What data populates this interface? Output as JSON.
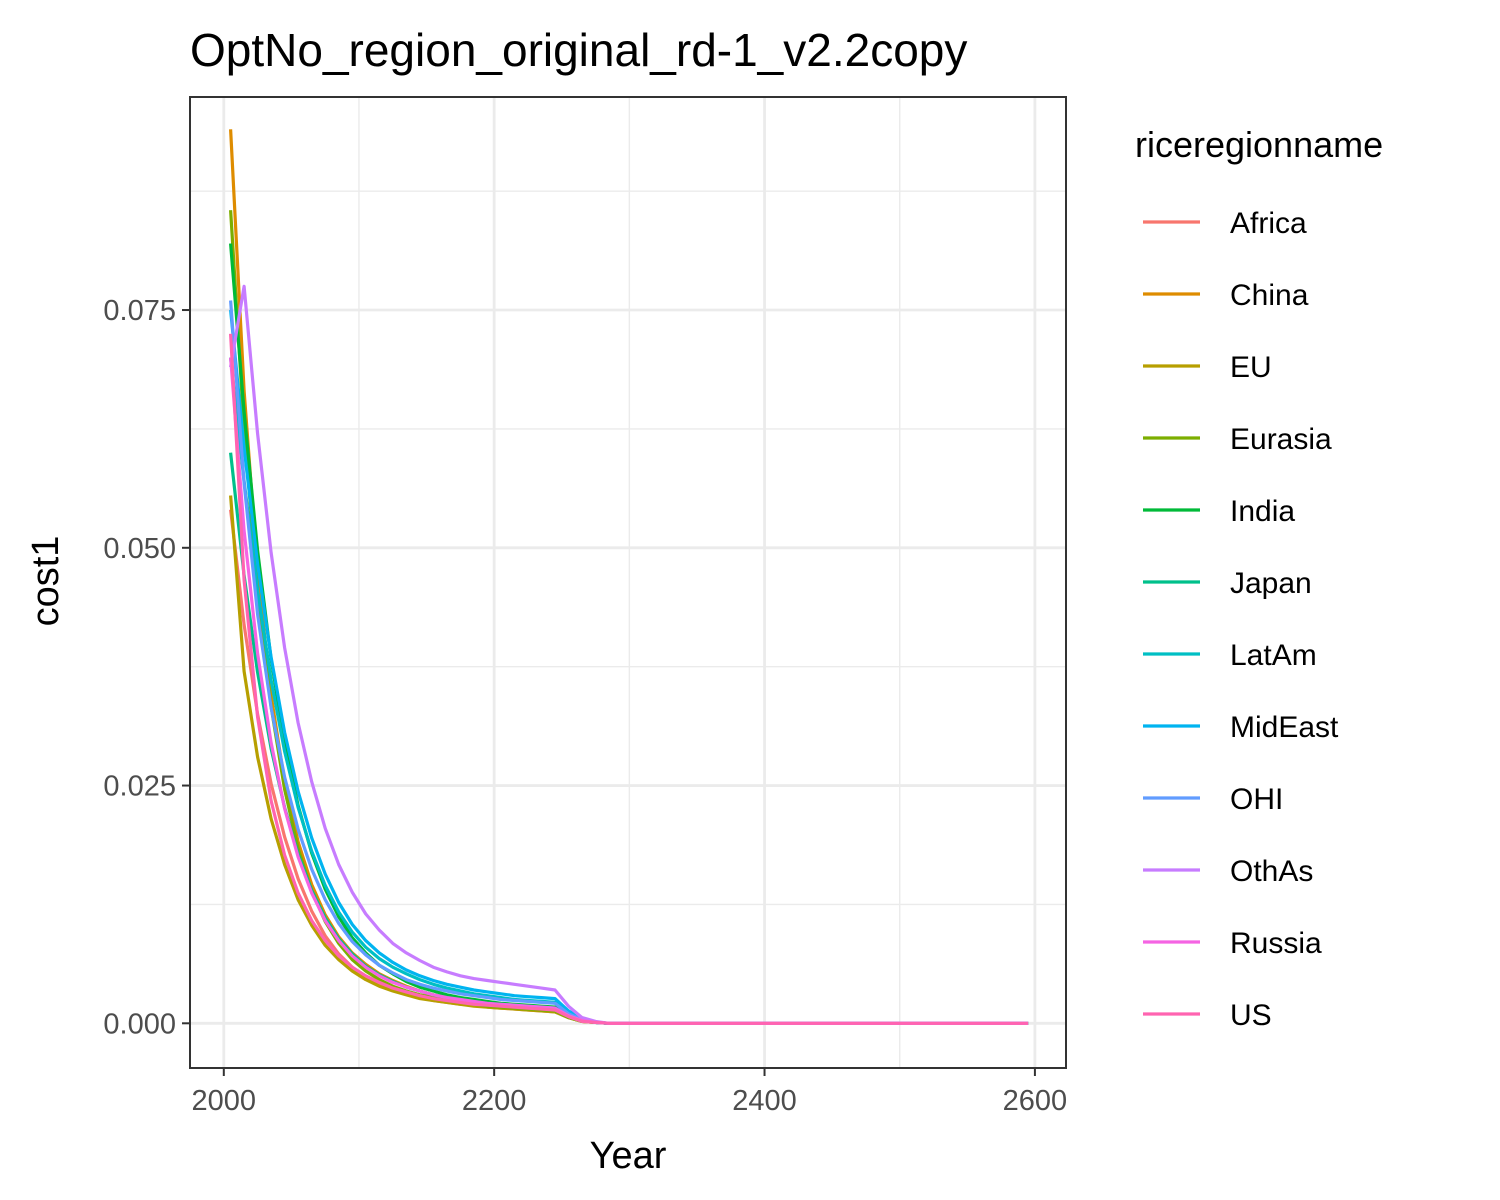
{
  "chart_data": {
    "type": "line",
    "title": "OptNo_region_original_rd-1_v2.2copy",
    "xlabel": "Year",
    "ylabel": "cost1",
    "xlim": [
      1975,
      2623
    ],
    "ylim": [
      -0.0047,
      0.0974
    ],
    "x_ticks": [
      2000,
      2200,
      2400,
      2600
    ],
    "x_tick_labels": [
      "2000",
      "2200",
      "2400",
      "2600"
    ],
    "y_ticks": [
      0.0,
      0.025,
      0.05,
      0.075
    ],
    "y_tick_labels": [
      "0.000",
      "0.025",
      "0.050",
      "0.075"
    ],
    "grid": true,
    "legend_title": "riceregionname",
    "legend_position": "right",
    "x": [
      2005,
      2015,
      2025,
      2035,
      2045,
      2055,
      2065,
      2075,
      2085,
      2095,
      2105,
      2115,
      2125,
      2135,
      2145,
      2155,
      2165,
      2175,
      2185,
      2195,
      2205,
      2215,
      2225,
      2235,
      2245,
      2255,
      2265,
      2275,
      2285,
      2295,
      2305,
      2315,
      2325,
      2335,
      2345,
      2355,
      2365,
      2375,
      2385,
      2395,
      2405,
      2415,
      2425,
      2435,
      2445,
      2455,
      2465,
      2475,
      2485,
      2495,
      2505,
      2515,
      2525,
      2535,
      2545,
      2555,
      2565,
      2575,
      2585,
      2595
    ],
    "series": [
      {
        "name": "Africa",
        "color": "#F8766D",
        "values": [
          0.054,
          0.0419,
          0.0325,
          0.0252,
          0.0196,
          0.0152,
          0.0118,
          0.0092,
          0.0073,
          0.0059,
          0.0049,
          0.0041,
          0.0035,
          0.0031,
          0.0027,
          0.0024,
          0.0022,
          0.002,
          0.0019,
          0.0017,
          0.0016,
          0.0015,
          0.0014,
          0.0013,
          0.0012,
          0.0006,
          0.0002,
          0.0001,
          0.0,
          0.0,
          0.0,
          0.0,
          0.0,
          0.0,
          0.0,
          0.0,
          0.0,
          0.0,
          0.0,
          0.0,
          0.0,
          0.0,
          0.0,
          0.0,
          0.0,
          0.0,
          0.0,
          0.0,
          0.0,
          0.0,
          0.0,
          0.0,
          0.0,
          0.0,
          0.0,
          0.0,
          0.0,
          0.0,
          0.0,
          0.0
        ]
      },
      {
        "name": "China",
        "color": "#DE8C00",
        "values": [
          0.094,
          0.0665,
          0.0475,
          0.0345,
          0.0254,
          0.0191,
          0.0146,
          0.0114,
          0.0091,
          0.0074,
          0.0062,
          0.0052,
          0.0045,
          0.0039,
          0.0034,
          0.003,
          0.0027,
          0.0024,
          0.0022,
          0.002,
          0.0018,
          0.0017,
          0.0016,
          0.0015,
          0.0014,
          0.0007,
          0.0002,
          0.0001,
          0.0,
          0.0,
          0.0,
          0.0,
          0.0,
          0.0,
          0.0,
          0.0,
          0.0,
          0.0,
          0.0,
          0.0,
          0.0,
          0.0,
          0.0,
          0.0,
          0.0,
          0.0,
          0.0,
          0.0,
          0.0,
          0.0,
          0.0,
          0.0,
          0.0,
          0.0,
          0.0,
          0.0,
          0.0,
          0.0,
          0.0,
          0.0
        ]
      },
      {
        "name": "EU",
        "color": "#B79F00",
        "values": [
          0.0555,
          0.037,
          0.028,
          0.0215,
          0.0167,
          0.013,
          0.0103,
          0.0082,
          0.0067,
          0.0055,
          0.0046,
          0.0039,
          0.0034,
          0.003,
          0.0026,
          0.0024,
          0.0022,
          0.002,
          0.0018,
          0.0017,
          0.0016,
          0.0015,
          0.0014,
          0.0013,
          0.0012,
          0.0006,
          0.0002,
          0.0001,
          0.0,
          0.0,
          0.0,
          0.0,
          0.0,
          0.0,
          0.0,
          0.0,
          0.0,
          0.0,
          0.0,
          0.0,
          0.0,
          0.0,
          0.0,
          0.0,
          0.0,
          0.0,
          0.0,
          0.0,
          0.0,
          0.0,
          0.0,
          0.0,
          0.0,
          0.0,
          0.0,
          0.0,
          0.0,
          0.0,
          0.0,
          0.0
        ]
      },
      {
        "name": "Eurasia",
        "color": "#7CAE00",
        "values": [
          0.0855,
          0.0624,
          0.0454,
          0.0333,
          0.0246,
          0.0184,
          0.0139,
          0.0107,
          0.0084,
          0.0067,
          0.0055,
          0.0046,
          0.0039,
          0.0034,
          0.003,
          0.0027,
          0.0024,
          0.0022,
          0.002,
          0.0018,
          0.0017,
          0.0016,
          0.0015,
          0.0014,
          0.0013,
          0.0006,
          0.0002,
          0.0001,
          0.0,
          0.0,
          0.0,
          0.0,
          0.0,
          0.0,
          0.0,
          0.0,
          0.0,
          0.0,
          0.0,
          0.0,
          0.0,
          0.0,
          0.0,
          0.0,
          0.0,
          0.0,
          0.0,
          0.0,
          0.0,
          0.0,
          0.0,
          0.0,
          0.0,
          0.0,
          0.0,
          0.0,
          0.0,
          0.0,
          0.0,
          0.0
        ]
      },
      {
        "name": "India",
        "color": "#00BA38",
        "values": [
          0.082,
          0.0643,
          0.0497,
          0.0383,
          0.0296,
          0.0229,
          0.0179,
          0.0141,
          0.0112,
          0.009,
          0.0074,
          0.0061,
          0.0052,
          0.0044,
          0.0038,
          0.0034,
          0.003,
          0.0027,
          0.0025,
          0.0023,
          0.0021,
          0.002,
          0.0019,
          0.0018,
          0.0017,
          0.0008,
          0.0003,
          0.0001,
          0.0,
          0.0,
          0.0,
          0.0,
          0.0,
          0.0,
          0.0,
          0.0,
          0.0,
          0.0,
          0.0,
          0.0,
          0.0,
          0.0,
          0.0,
          0.0,
          0.0,
          0.0,
          0.0,
          0.0,
          0.0,
          0.0,
          0.0,
          0.0,
          0.0,
          0.0,
          0.0,
          0.0,
          0.0,
          0.0,
          0.0,
          0.0
        ]
      },
      {
        "name": "Japan",
        "color": "#00C08B",
        "values": [
          0.06,
          0.0471,
          0.0369,
          0.0289,
          0.0227,
          0.0178,
          0.014,
          0.0111,
          0.0089,
          0.0073,
          0.006,
          0.0051,
          0.0044,
          0.0038,
          0.0034,
          0.003,
          0.0027,
          0.0025,
          0.0023,
          0.0021,
          0.002,
          0.0019,
          0.0018,
          0.0017,
          0.0016,
          0.0008,
          0.0003,
          0.0001,
          0.0,
          0.0,
          0.0,
          0.0,
          0.0,
          0.0,
          0.0,
          0.0,
          0.0,
          0.0,
          0.0,
          0.0,
          0.0,
          0.0,
          0.0,
          0.0,
          0.0,
          0.0,
          0.0,
          0.0,
          0.0,
          0.0,
          0.0,
          0.0,
          0.0,
          0.0,
          0.0,
          0.0,
          0.0,
          0.0,
          0.0,
          0.0
        ]
      },
      {
        "name": "LatAm",
        "color": "#00BFC4",
        "values": [
          0.07,
          0.057,
          0.0455,
          0.0361,
          0.0286,
          0.0227,
          0.0181,
          0.0145,
          0.0117,
          0.0096,
          0.008,
          0.0068,
          0.0059,
          0.0052,
          0.0046,
          0.0041,
          0.0037,
          0.0034,
          0.0031,
          0.0029,
          0.0027,
          0.0025,
          0.0024,
          0.0023,
          0.0022,
          0.0011,
          0.0004,
          0.0001,
          0.0,
          0.0,
          0.0,
          0.0,
          0.0,
          0.0,
          0.0,
          0.0,
          0.0,
          0.0,
          0.0,
          0.0,
          0.0,
          0.0,
          0.0,
          0.0,
          0.0,
          0.0,
          0.0,
          0.0,
          0.0,
          0.0,
          0.0,
          0.0,
          0.0,
          0.0,
          0.0,
          0.0,
          0.0,
          0.0,
          0.0,
          0.0
        ]
      },
      {
        "name": "MidEast",
        "color": "#00B4F0",
        "values": [
          0.075,
          0.0605,
          0.0483,
          0.0385,
          0.0306,
          0.0244,
          0.0195,
          0.0157,
          0.0127,
          0.0104,
          0.0087,
          0.0074,
          0.0064,
          0.0056,
          0.005,
          0.0045,
          0.0041,
          0.0038,
          0.0035,
          0.0033,
          0.0031,
          0.0029,
          0.0028,
          0.0027,
          0.0026,
          0.0013,
          0.0005,
          0.0001,
          0.0,
          0.0,
          0.0,
          0.0,
          0.0,
          0.0,
          0.0,
          0.0,
          0.0,
          0.0,
          0.0,
          0.0,
          0.0,
          0.0,
          0.0,
          0.0,
          0.0,
          0.0,
          0.0,
          0.0,
          0.0,
          0.0,
          0.0,
          0.0,
          0.0,
          0.0,
          0.0,
          0.0,
          0.0,
          0.0,
          0.0,
          0.0
        ]
      },
      {
        "name": "OHI",
        "color": "#619CFF",
        "values": [
          0.076,
          0.0568,
          0.043,
          0.0332,
          0.0259,
          0.0204,
          0.0162,
          0.013,
          0.0105,
          0.0086,
          0.0072,
          0.0061,
          0.0053,
          0.0046,
          0.0041,
          0.0037,
          0.0034,
          0.0031,
          0.0029,
          0.0027,
          0.0025,
          0.0024,
          0.0023,
          0.0022,
          0.0021,
          0.001,
          0.0004,
          0.0001,
          0.0,
          0.0,
          0.0,
          0.0,
          0.0,
          0.0,
          0.0,
          0.0,
          0.0,
          0.0,
          0.0,
          0.0,
          0.0,
          0.0,
          0.0,
          0.0,
          0.0,
          0.0,
          0.0,
          0.0,
          0.0,
          0.0,
          0.0,
          0.0,
          0.0,
          0.0,
          0.0,
          0.0,
          0.0,
          0.0,
          0.0,
          0.0
        ]
      },
      {
        "name": "OthAs",
        "color": "#C77CFF",
        "values": [
          0.069,
          0.0775,
          0.062,
          0.0495,
          0.0395,
          0.0316,
          0.0254,
          0.0205,
          0.0167,
          0.0138,
          0.0115,
          0.0098,
          0.0084,
          0.0074,
          0.0066,
          0.0059,
          0.0054,
          0.005,
          0.0047,
          0.0045,
          0.0043,
          0.0041,
          0.0039,
          0.0037,
          0.0035,
          0.0018,
          0.0006,
          0.0002,
          0.0,
          0.0,
          0.0,
          0.0,
          0.0,
          0.0,
          0.0,
          0.0,
          0.0,
          0.0,
          0.0,
          0.0,
          0.0,
          0.0,
          0.0,
          0.0,
          0.0,
          0.0,
          0.0,
          0.0,
          0.0,
          0.0,
          0.0,
          0.0,
          0.0,
          0.0,
          0.0,
          0.0,
          0.0,
          0.0,
          0.0,
          0.0
        ]
      },
      {
        "name": "Russia",
        "color": "#F564E3",
        "values": [
          0.07,
          0.0518,
          0.0389,
          0.0295,
          0.0226,
          0.0175,
          0.0137,
          0.0108,
          0.0087,
          0.0071,
          0.0059,
          0.005,
          0.0043,
          0.0038,
          0.0034,
          0.003,
          0.0027,
          0.0025,
          0.0023,
          0.0021,
          0.002,
          0.0019,
          0.0018,
          0.0017,
          0.0016,
          0.0008,
          0.0003,
          0.0001,
          0.0,
          0.0,
          0.0,
          0.0,
          0.0,
          0.0,
          0.0,
          0.0,
          0.0,
          0.0,
          0.0,
          0.0,
          0.0,
          0.0,
          0.0,
          0.0,
          0.0,
          0.0,
          0.0,
          0.0,
          0.0,
          0.0,
          0.0,
          0.0,
          0.0,
          0.0,
          0.0,
          0.0,
          0.0,
          0.0,
          0.0,
          0.0
        ]
      },
      {
        "name": "US",
        "color": "#FF64B0",
        "values": [
          0.0725,
          0.0466,
          0.0322,
          0.0234,
          0.0177,
          0.0137,
          0.0108,
          0.0087,
          0.0071,
          0.0059,
          0.005,
          0.0043,
          0.0037,
          0.0033,
          0.0029,
          0.0026,
          0.0024,
          0.0022,
          0.002,
          0.0019,
          0.0018,
          0.0017,
          0.0016,
          0.0015,
          0.0014,
          0.0007,
          0.0002,
          0.0001,
          0.0,
          0.0,
          0.0,
          0.0,
          0.0,
          0.0,
          0.0,
          0.0,
          0.0,
          0.0,
          0.0,
          0.0,
          0.0,
          0.0,
          0.0,
          0.0,
          0.0,
          0.0,
          0.0,
          0.0,
          0.0,
          0.0,
          0.0,
          0.0,
          0.0,
          0.0,
          0.0,
          0.0,
          0.0,
          0.0,
          0.0,
          0.0
        ]
      }
    ]
  }
}
